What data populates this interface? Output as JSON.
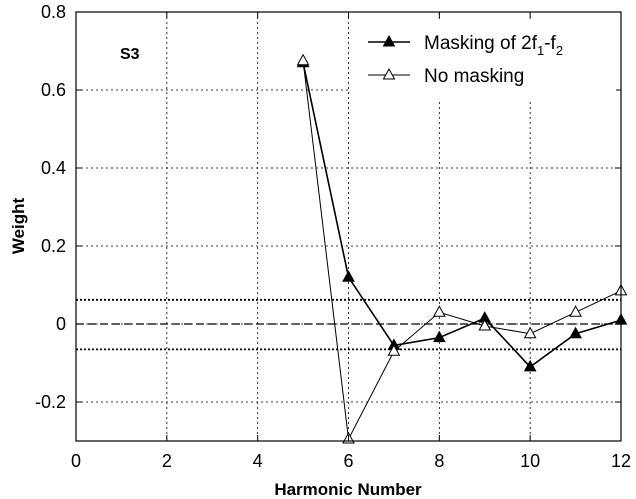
{
  "chart_data": {
    "type": "line",
    "xlabel": "Harmonic Number",
    "ylabel": "Weight",
    "xlim": [
      0,
      12
    ],
    "ylim": [
      -0.3,
      0.8
    ],
    "xticks": [
      0,
      2,
      4,
      6,
      8,
      10,
      12
    ],
    "yticks": [
      -0.2,
      0,
      0.2,
      0.4,
      0.6,
      0.8
    ],
    "ytick_labels": [
      "-0.2",
      "0",
      "0.2",
      "0.4",
      "0.6",
      "0.8"
    ],
    "grid": true,
    "panel_label": "S3",
    "legend_position": "top-right",
    "reference_lines": [
      {
        "y": 0,
        "style": "dashed"
      },
      {
        "y": 0.062,
        "style": "dotted"
      },
      {
        "y": -0.065,
        "style": "dotted"
      }
    ],
    "series": [
      {
        "name": "Masking of 2f1-f2",
        "legend_main": "Masking of 2f",
        "legend_sub1": "1",
        "legend_mid": "-f",
        "legend_sub2": "2",
        "marker": "filled-triangle",
        "x": [
          5,
          6,
          7,
          8,
          9,
          10,
          11,
          12
        ],
        "y": [
          0.67,
          0.12,
          -0.055,
          -0.035,
          0.015,
          -0.11,
          -0.025,
          0.01
        ]
      },
      {
        "name": "No masking",
        "legend_main": "No masking",
        "marker": "open-triangle",
        "x": [
          5,
          6,
          7,
          8,
          9,
          10,
          11,
          12
        ],
        "y": [
          0.675,
          -0.295,
          -0.07,
          0.03,
          -0.005,
          -0.025,
          0.03,
          0.085
        ]
      }
    ]
  }
}
